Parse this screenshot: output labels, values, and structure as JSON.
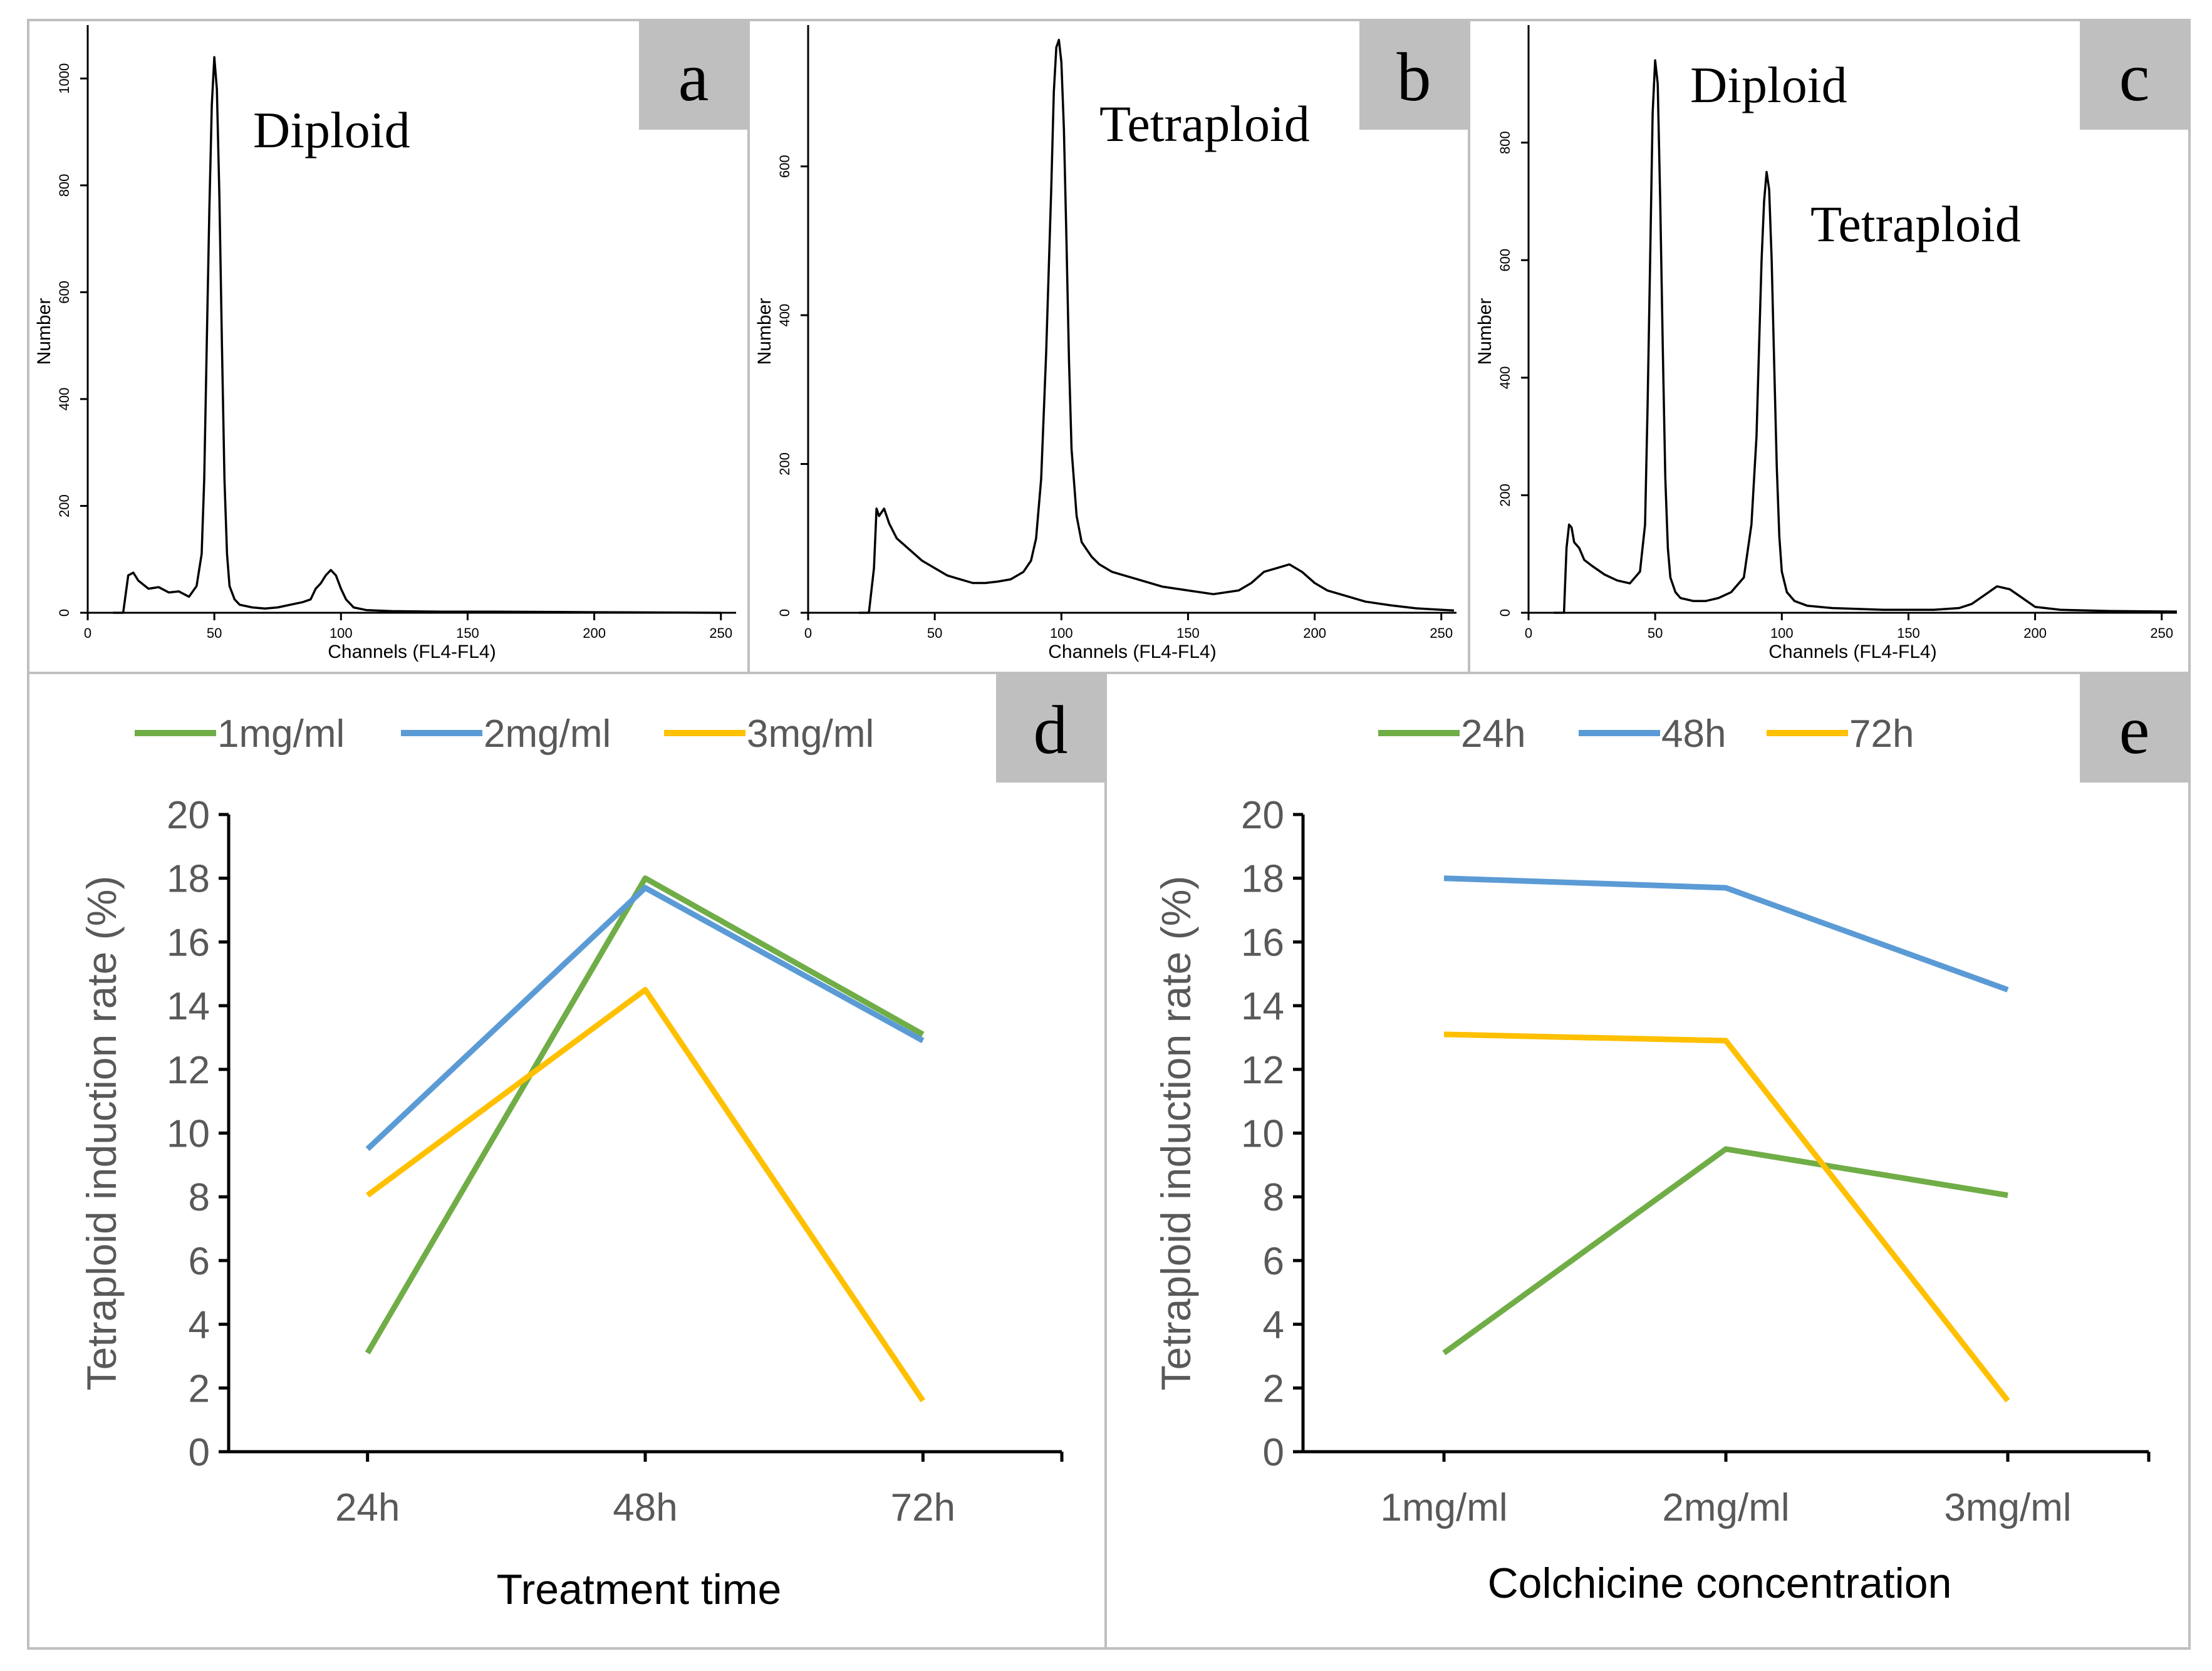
{
  "chart_data": [
    {
      "panel": "a",
      "type": "line",
      "ylabel": "Number",
      "xlabel": "Channels (FL4-FL4)",
      "xlim": [
        0,
        256
      ],
      "ylim": [
        0,
        1100
      ],
      "xticks": [
        "0",
        "50",
        "100",
        "150",
        "200",
        "250"
      ],
      "yticks": [
        "0",
        "200",
        "400",
        "600",
        "800",
        "1000"
      ],
      "annotations": [
        {
          "text": "Diploid",
          "x": 97,
          "y": 1000
        }
      ],
      "series": [
        {
          "x": [
            10,
            14,
            16,
            18,
            20,
            24,
            28,
            32,
            36,
            40,
            43,
            45,
            46,
            47,
            48,
            49,
            50,
            51,
            52,
            53,
            54,
            55,
            56,
            58,
            60,
            65,
            70,
            75,
            80,
            85,
            88,
            90,
            92,
            94,
            96,
            98,
            100,
            102,
            105,
            110,
            120,
            140,
            160,
            200,
            250
          ],
          "y": [
            0,
            0,
            70,
            75,
            60,
            45,
            48,
            38,
            40,
            30,
            50,
            110,
            250,
            500,
            750,
            950,
            1040,
            980,
            780,
            500,
            250,
            110,
            50,
            25,
            15,
            10,
            8,
            10,
            15,
            20,
            25,
            45,
            55,
            70,
            80,
            70,
            45,
            25,
            10,
            5,
            3,
            2,
            2,
            1,
            0
          ]
        }
      ]
    },
    {
      "panel": "b",
      "type": "line",
      "ylabel": "Number",
      "xlabel": "Channels (FL4-FL4)",
      "xlim": [
        0,
        256
      ],
      "ylim": [
        0,
        790
      ],
      "xticks": [
        "0",
        "50",
        "100",
        "150",
        "200",
        "250"
      ],
      "yticks": [
        "0",
        "200",
        "400",
        "600"
      ],
      "annotations": [
        {
          "text": "Tetraploid",
          "x": 158,
          "y": 680
        }
      ],
      "series": [
        {
          "x": [
            20,
            24,
            26,
            27,
            28,
            30,
            32,
            35,
            40,
            45,
            50,
            55,
            60,
            65,
            70,
            75,
            80,
            85,
            88,
            90,
            92,
            94,
            96,
            97,
            98,
            99,
            100,
            101,
            102,
            103,
            104,
            106,
            108,
            110,
            112,
            115,
            120,
            130,
            140,
            150,
            160,
            170,
            175,
            180,
            185,
            190,
            195,
            200,
            205,
            210,
            220,
            230,
            240,
            250,
            255
          ],
          "y": [
            0,
            0,
            60,
            140,
            130,
            140,
            120,
            100,
            85,
            70,
            60,
            50,
            45,
            40,
            40,
            42,
            45,
            55,
            70,
            100,
            180,
            350,
            570,
            700,
            760,
            770,
            740,
            650,
            500,
            340,
            220,
            130,
            95,
            85,
            75,
            65,
            55,
            45,
            35,
            30,
            25,
            30,
            40,
            55,
            60,
            65,
            55,
            40,
            30,
            25,
            15,
            10,
            6,
            4,
            3
          ]
        }
      ]
    },
    {
      "panel": "c",
      "type": "line",
      "ylabel": "Number",
      "xlabel": "Channels (FL4-FL4)",
      "xlim": [
        0,
        256
      ],
      "ylim": [
        0,
        1000
      ],
      "xticks": [
        "0",
        "50",
        "100",
        "150",
        "200",
        "250"
      ],
      "yticks": [
        "0",
        "200",
        "400",
        "600",
        "800"
      ],
      "annotations": [
        {
          "text": "Diploid",
          "x": 97,
          "y": 900
        },
        {
          "text": "Tetraploid",
          "x": 175,
          "y": 700
        }
      ],
      "series": [
        {
          "x": [
            10,
            14,
            15,
            16,
            17,
            18,
            20,
            22,
            25,
            30,
            35,
            40,
            44,
            46,
            47,
            48,
            49,
            50,
            51,
            52,
            53,
            54,
            55,
            56,
            58,
            60,
            65,
            70,
            75,
            80,
            85,
            88,
            90,
            91,
            92,
            93,
            94,
            95,
            96,
            97,
            98,
            99,
            100,
            102,
            105,
            110,
            120,
            140,
            160,
            170,
            175,
            180,
            185,
            190,
            195,
            200,
            210,
            230,
            256
          ],
          "y": [
            0,
            0,
            110,
            150,
            145,
            120,
            110,
            90,
            80,
            65,
            55,
            50,
            70,
            150,
            350,
            600,
            850,
            940,
            900,
            700,
            450,
            230,
            110,
            60,
            35,
            25,
            20,
            20,
            25,
            35,
            60,
            150,
            300,
            450,
            600,
            700,
            750,
            720,
            600,
            420,
            250,
            130,
            70,
            35,
            20,
            12,
            8,
            5,
            5,
            8,
            15,
            30,
            45,
            40,
            25,
            10,
            5,
            3,
            2
          ]
        }
      ]
    },
    {
      "panel": "d",
      "type": "line",
      "xlabel": "Treatment time",
      "ylabel": "Tetraploid induction rate (%)",
      "categories": [
        "24h",
        "48h",
        "72h"
      ],
      "ylim": [
        0,
        20
      ],
      "yticks": [
        "0",
        "2",
        "4",
        "6",
        "8",
        "10",
        "12",
        "14",
        "16",
        "18",
        "20"
      ],
      "legend": "top",
      "series": [
        {
          "name": "1mg/ml",
          "color": "#70ad47",
          "values": [
            3.1,
            18.0,
            13.1
          ]
        },
        {
          "name": "2mg/ml",
          "color": "#5b9bd5",
          "values": [
            9.5,
            17.7,
            12.9
          ]
        },
        {
          "name": "3mg/ml",
          "color": "#ffc000",
          "values": [
            8.05,
            14.5,
            1.6
          ]
        }
      ]
    },
    {
      "panel": "e",
      "type": "line",
      "xlabel": "Colchicine concentration",
      "ylabel": "Tetraploid induction rate (%)",
      "categories": [
        "1mg/ml",
        "2mg/ml",
        "3mg/ml"
      ],
      "ylim": [
        0,
        20
      ],
      "yticks": [
        "0",
        "2",
        "4",
        "6",
        "8",
        "10",
        "12",
        "14",
        "16",
        "18",
        "20"
      ],
      "legend": "top",
      "series": [
        {
          "name": "24h",
          "color": "#70ad47",
          "values": [
            3.1,
            9.5,
            8.05
          ]
        },
        {
          "name": "48h",
          "color": "#5b9bd5",
          "values": [
            18.0,
            17.7,
            14.5
          ]
        },
        {
          "name": "72h",
          "color": "#ffc000",
          "values": [
            13.1,
            12.9,
            1.6
          ]
        }
      ]
    }
  ]
}
